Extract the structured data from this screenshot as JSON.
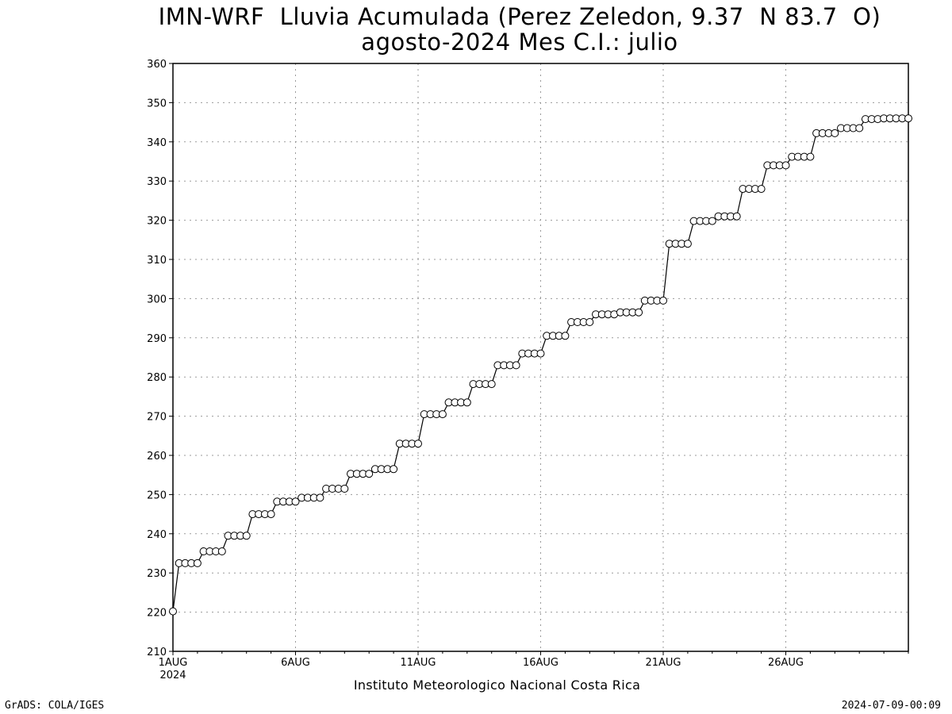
{
  "chart_data": {
    "type": "line",
    "title": "IMN-WRF  Lluvia Acumulada (Perez Zeledon, 9.37  N 83.7  O)",
    "subtitle": "agosto-2024 Mes C.I.: julio",
    "xlabel": "Instituto Meteorologico Nacional Costa Rica",
    "ylabel": "",
    "ylim": [
      210,
      360
    ],
    "yticks": [
      210,
      220,
      230,
      240,
      250,
      260,
      270,
      280,
      290,
      300,
      310,
      320,
      330,
      340,
      350,
      360
    ],
    "xlim": [
      1,
      31
    ],
    "xticks": [
      {
        "day": 1,
        "label": "1AUG",
        "sublabel": "2024"
      },
      {
        "day": 6,
        "label": "6AUG",
        "sublabel": ""
      },
      {
        "day": 11,
        "label": "11AUG",
        "sublabel": ""
      },
      {
        "day": 16,
        "label": "16AUG",
        "sublabel": ""
      },
      {
        "day": 21,
        "label": "21AUG",
        "sublabel": ""
      },
      {
        "day": 26,
        "label": "26AUG",
        "sublabel": ""
      }
    ],
    "grid": true,
    "marker": "open-circle",
    "series": [
      {
        "x_start_day": 1,
        "x_step_days": 0.25,
        "values": [
          220.2,
          232.5,
          232.5,
          232.5,
          232.5,
          235.5,
          235.5,
          235.5,
          235.5,
          239.5,
          239.5,
          239.5,
          239.5,
          245.0,
          245.0,
          245.0,
          245.0,
          248.2,
          248.2,
          248.2,
          248.2,
          249.2,
          249.2,
          249.2,
          249.2,
          251.5,
          251.5,
          251.5,
          251.5,
          255.3,
          255.3,
          255.3,
          255.3,
          256.5,
          256.5,
          256.5,
          256.5,
          263.0,
          263.0,
          263.0,
          263.0,
          270.5,
          270.5,
          270.5,
          270.5,
          273.5,
          273.5,
          273.5,
          273.5,
          278.2,
          278.2,
          278.2,
          278.2,
          283.0,
          283.0,
          283.0,
          283.0,
          286.0,
          286.0,
          286.0,
          286.0,
          290.5,
          290.5,
          290.5,
          290.5,
          294.0,
          294.0,
          294.0,
          294.0,
          296.0,
          296.0,
          296.0,
          296.0,
          296.5,
          296.5,
          296.5,
          296.5,
          299.5,
          299.5,
          299.5,
          299.5,
          314.0,
          314.0,
          314.0,
          314.0,
          319.8,
          319.8,
          319.8,
          319.8,
          321.0,
          321.0,
          321.0,
          321.0,
          328.0,
          328.0,
          328.0,
          328.0,
          334.0,
          334.0,
          334.0,
          334.0,
          336.2,
          336.2,
          336.2,
          336.2,
          342.2,
          342.2,
          342.2,
          342.2,
          343.5,
          343.5,
          343.5,
          343.5,
          345.8,
          345.8,
          345.8,
          346.0,
          346.0,
          346.0,
          346.0,
          346.0
        ]
      }
    ]
  },
  "footer": {
    "left": "GrADS: COLA/IGES",
    "right": "2024-07-09-00:09"
  },
  "colors": {
    "line": "#000000",
    "marker_fill": "#ffffff",
    "grid": "#9a9a9a",
    "background": "#ffffff"
  }
}
